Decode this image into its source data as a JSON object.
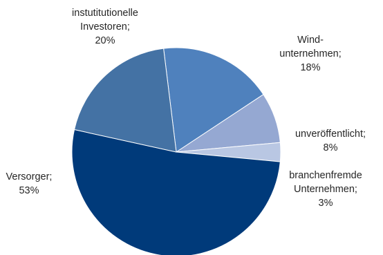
{
  "chart_data": {
    "type": "pie",
    "title": "",
    "start_angle_deg": -7,
    "direction": "clockwise",
    "slices": [
      {
        "lines": [
          "Wind-",
          "unternehmen;",
          "18%"
        ],
        "value": 18,
        "color": "#4f81bd"
      },
      {
        "lines": [
          "unveröffentlicht;",
          "8%"
        ],
        "value": 8,
        "color": "#95a8d2"
      },
      {
        "lines": [
          "branchenfremde",
          "Unternehmen;",
          "3%"
        ],
        "value": 3,
        "color": "#b9c7e3"
      },
      {
        "lines": [
          "Versorger;",
          "53%"
        ],
        "value": 53,
        "color": "#003a7a"
      },
      {
        "lines": [
          "instutitutionelle",
          "Investoren;",
          "20%"
        ],
        "value": 20,
        "color": "#4472a4"
      }
    ]
  }
}
